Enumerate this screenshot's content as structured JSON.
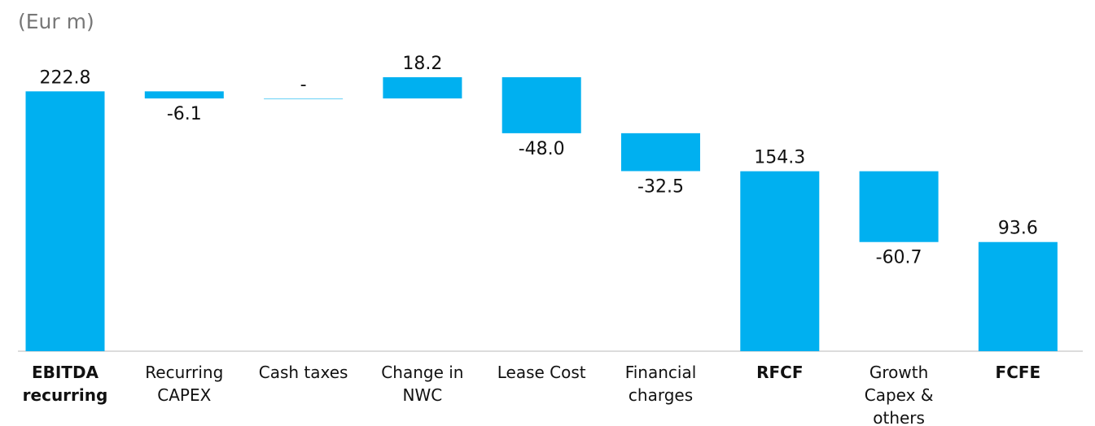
{
  "chart_data": {
    "type": "waterfall",
    "subtitle": "(Eur m)",
    "categories": [
      "EBITDA recurring",
      "Recurring CAPEX",
      "Cash taxes",
      "Change in NWC",
      "Lease Cost",
      "Financial charges",
      "RFCF",
      "Growth Capex & others",
      "FCFE"
    ],
    "measures": [
      "total",
      "relative",
      "relative",
      "relative",
      "relative",
      "relative",
      "total",
      "relative",
      "total"
    ],
    "values": [
      222.8,
      -6.1,
      0,
      18.2,
      -48.0,
      -32.5,
      154.3,
      -60.7,
      93.6
    ],
    "value_labels": [
      "222.8",
      "-6.1",
      "-",
      "18.2",
      "-48.0",
      "-32.5",
      "154.3",
      "-60.7",
      "93.6"
    ],
    "color": "#00b0f0"
  }
}
